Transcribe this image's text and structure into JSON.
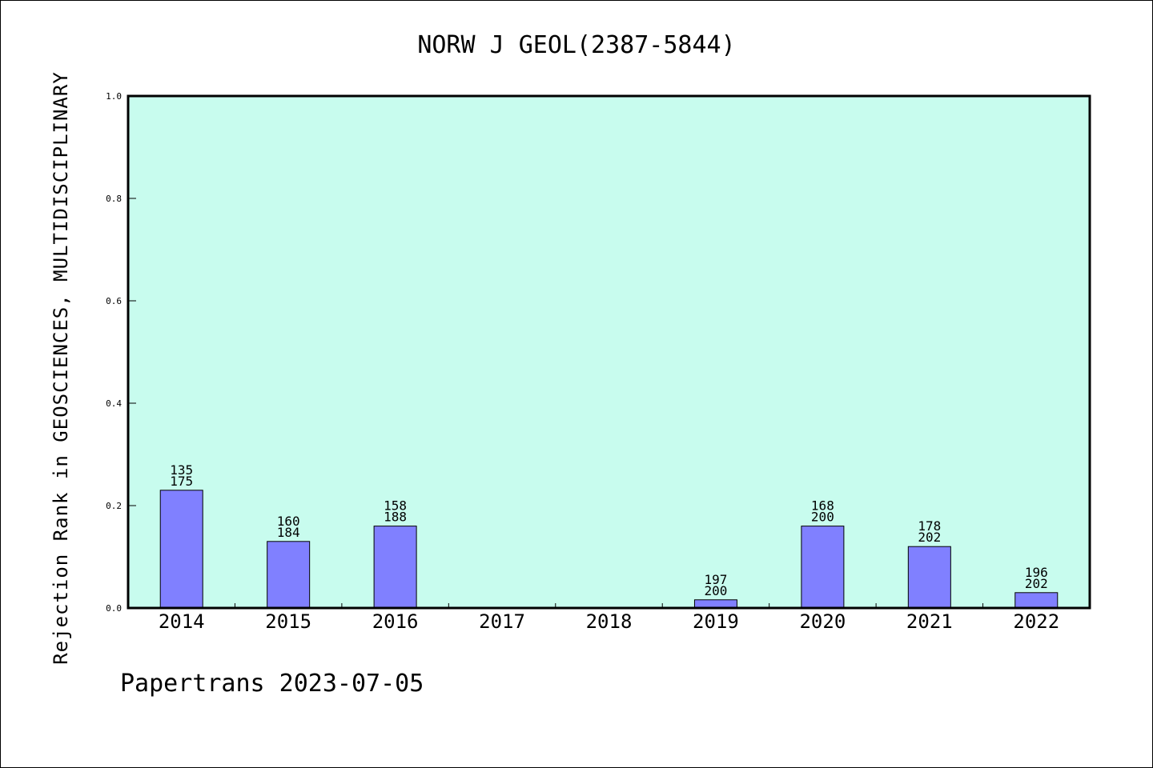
{
  "chart_data": {
    "type": "bar",
    "title": "NORW J GEOL(2387-5844)",
    "ylabel": "Rejection Rank in GEOSCIENCES, MULTIDISCIPLINARY",
    "xlabel": "",
    "categories": [
      "2014",
      "2015",
      "2016",
      "2017",
      "2018",
      "2019",
      "2020",
      "2021",
      "2022"
    ],
    "values": [
      0.23,
      0.13,
      0.16,
      0,
      0,
      0.016,
      0.16,
      0.12,
      0.03
    ],
    "labels_top": [
      "135",
      "160",
      "158",
      "",
      "",
      "197",
      "168",
      "178",
      "196"
    ],
    "labels_bottom": [
      "175",
      "184",
      "188",
      "",
      "",
      "200",
      "200",
      "202",
      "202"
    ],
    "ylim": [
      0,
      1.0
    ],
    "yticks": [
      "0.0",
      "0.2",
      "0.4",
      "0.6",
      "0.8",
      "1.0"
    ],
    "grid": false,
    "colors": {
      "plot_background": "#c8fcee",
      "bar_fill": "#8080ff",
      "bar_stroke": "#000000"
    }
  },
  "footer": "Papertrans 2023-07-05"
}
